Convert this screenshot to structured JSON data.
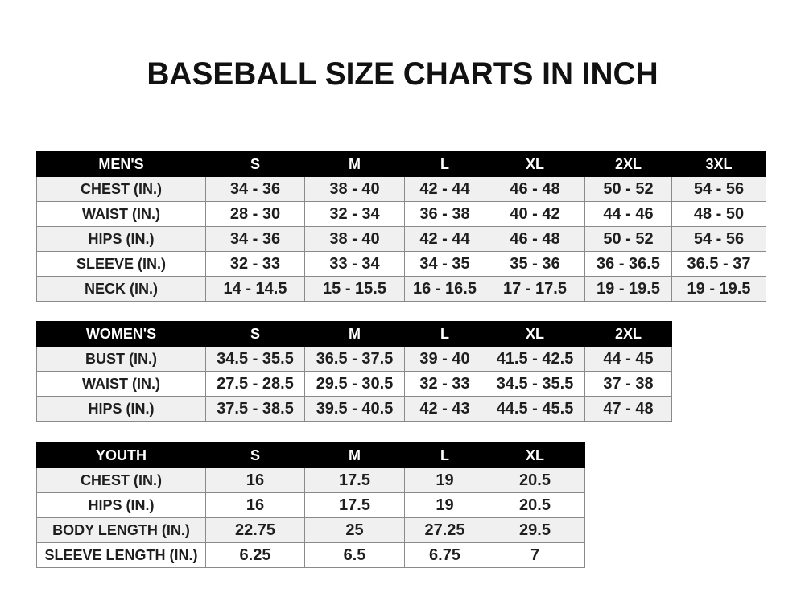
{
  "title": "BASEBALL SIZE CHARTS IN INCH",
  "men": {
    "header": [
      "MEN'S",
      "S",
      "M",
      "L",
      "XL",
      "2XL",
      "3XL"
    ],
    "rows": [
      [
        "CHEST (IN.)",
        "34 - 36",
        "38 - 40",
        "42 - 44",
        "46 - 48",
        "50 - 52",
        "54 - 56"
      ],
      [
        "WAIST (IN.)",
        "28 - 30",
        "32 - 34",
        "36 - 38",
        "40 - 42",
        "44 - 46",
        "48 - 50"
      ],
      [
        "HIPS (IN.)",
        "34 - 36",
        "38 - 40",
        "42 - 44",
        "46 - 48",
        "50 - 52",
        "54 - 56"
      ],
      [
        "SLEEVE (IN.)",
        "32 - 33",
        "33 - 34",
        "34 - 35",
        "35 - 36",
        "36 - 36.5",
        "36.5 - 37"
      ],
      [
        "NECK (IN.)",
        "14 - 14.5",
        "15 - 15.5",
        "16 - 16.5",
        "17 - 17.5",
        "19 - 19.5",
        "19 - 19.5"
      ]
    ]
  },
  "women": {
    "header": [
      "WOMEN'S",
      "S",
      "M",
      "L",
      "XL",
      "2XL"
    ],
    "rows": [
      [
        "BUST (IN.)",
        "34.5 - 35.5",
        "36.5 - 37.5",
        "39 - 40",
        "41.5 - 42.5",
        "44 - 45"
      ],
      [
        "WAIST (IN.)",
        "27.5 - 28.5",
        "29.5 - 30.5",
        "32 - 33",
        "34.5 - 35.5",
        "37 - 38"
      ],
      [
        "HIPS (IN.)",
        "37.5 - 38.5",
        "39.5 - 40.5",
        "42 - 43",
        "44.5 - 45.5",
        "47 - 48"
      ]
    ]
  },
  "youth": {
    "header": [
      "YOUTH",
      "S",
      "M",
      "L",
      "XL"
    ],
    "rows": [
      [
        "CHEST (IN.)",
        "16",
        "17.5",
        "19",
        "20.5"
      ],
      [
        "HIPS (IN.)",
        "16",
        "17.5",
        "19",
        "20.5"
      ],
      [
        "BODY LENGTH (IN.)",
        "22.75",
        "25",
        "27.25",
        "29.5"
      ],
      [
        "SLEEVE LENGTH (IN.)",
        "6.25",
        "6.5",
        "6.75",
        "7"
      ]
    ]
  }
}
